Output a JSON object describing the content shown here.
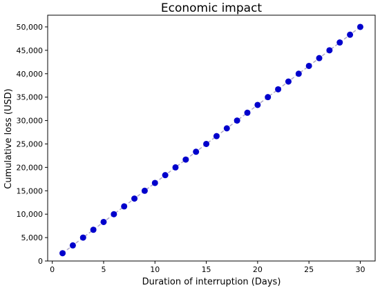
{
  "chart_data": {
    "type": "line",
    "title": "Economic impact",
    "xlabel": "Duration of interruption (Days)",
    "ylabel": "Cumulative loss (USD)",
    "xlim": [
      -0.45,
      31.45
    ],
    "ylim": [
      0,
      52500
    ],
    "x_ticks": [
      0,
      5,
      10,
      15,
      20,
      25,
      30
    ],
    "y_ticks": [
      0,
      5000,
      10000,
      15000,
      20000,
      25000,
      30000,
      35000,
      40000,
      45000,
      50000
    ],
    "y_tick_labels": [
      "0",
      "5,000",
      "10,000",
      "15,000",
      "20,000",
      "25,000",
      "30,000",
      "35,000",
      "40,000",
      "45,000",
      "50,000"
    ],
    "grid": false,
    "series": [
      {
        "x": [
          1,
          2,
          3,
          4,
          5,
          6,
          7,
          8,
          9,
          10,
          11,
          12,
          13,
          14,
          15,
          16,
          17,
          18,
          19,
          20,
          21,
          22,
          23,
          24,
          25,
          26,
          27,
          28,
          29,
          30
        ],
        "values": [
          1667,
          3333,
          5000,
          6667,
          8333,
          10000,
          11667,
          13333,
          15000,
          16667,
          18333,
          20000,
          21667,
          23333,
          25000,
          26667,
          28333,
          30000,
          31667,
          33333,
          35000,
          36667,
          38333,
          40000,
          41667,
          43333,
          45000,
          46667,
          48333,
          50000
        ],
        "marker_color": "#0000cc",
        "line_color": "#b0a8c8",
        "line_style": "dashed"
      }
    ]
  }
}
